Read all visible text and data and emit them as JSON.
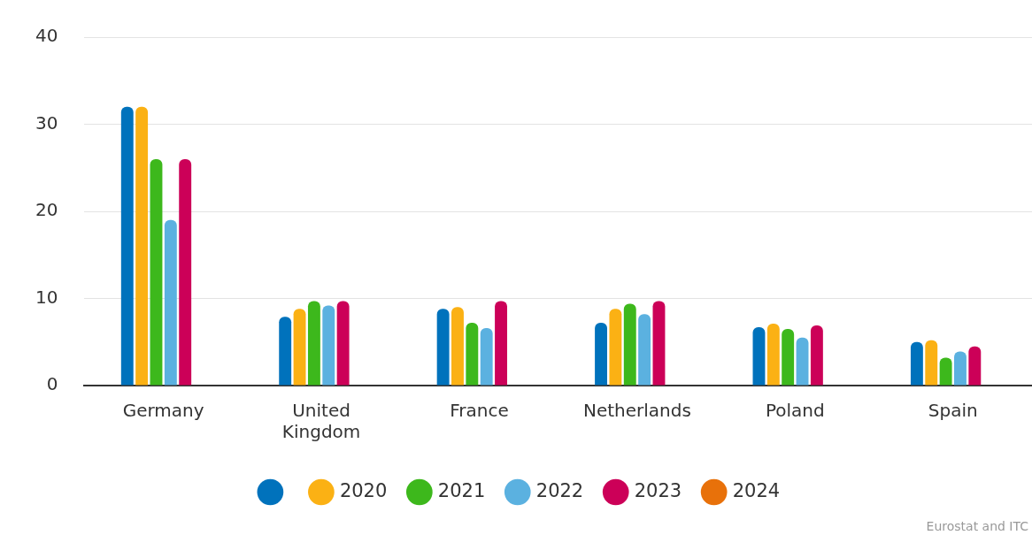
{
  "chart_data": {
    "type": "bar",
    "categories": [
      "Germany",
      "United Kingdom",
      "France",
      "Netherlands",
      "Poland",
      "Spain"
    ],
    "series": [
      {
        "color": "#0072bc",
        "values": [
          32,
          7.9,
          8.8,
          7.2,
          6.7,
          5.0
        ]
      },
      {
        "name": "2020",
        "color": "#fbb114",
        "values": [
          32,
          8.8,
          9.0,
          8.8,
          7.1,
          5.2
        ]
      },
      {
        "name": "2021",
        "color": "#3db81c",
        "values": [
          26,
          9.7,
          7.2,
          9.4,
          6.5,
          3.2
        ]
      },
      {
        "name": "2022",
        "color": "#5bb1e0",
        "values": [
          19,
          9.2,
          6.6,
          8.2,
          5.5,
          3.9
        ]
      },
      {
        "name": "2023",
        "color": "#cc0058",
        "values": [
          26,
          9.7,
          9.7,
          9.7,
          6.9,
          4.5
        ]
      },
      {
        "name": "2024",
        "color": "#e8710a",
        "values": [
          null,
          null,
          null,
          null,
          null,
          null
        ]
      }
    ],
    "ylim": [
      0,
      40
    ],
    "yticks": [
      0,
      10,
      20,
      30,
      40
    ],
    "grid": "y",
    "legend": "bottom",
    "annotations": [
      "Eurostat and ITC"
    ]
  }
}
